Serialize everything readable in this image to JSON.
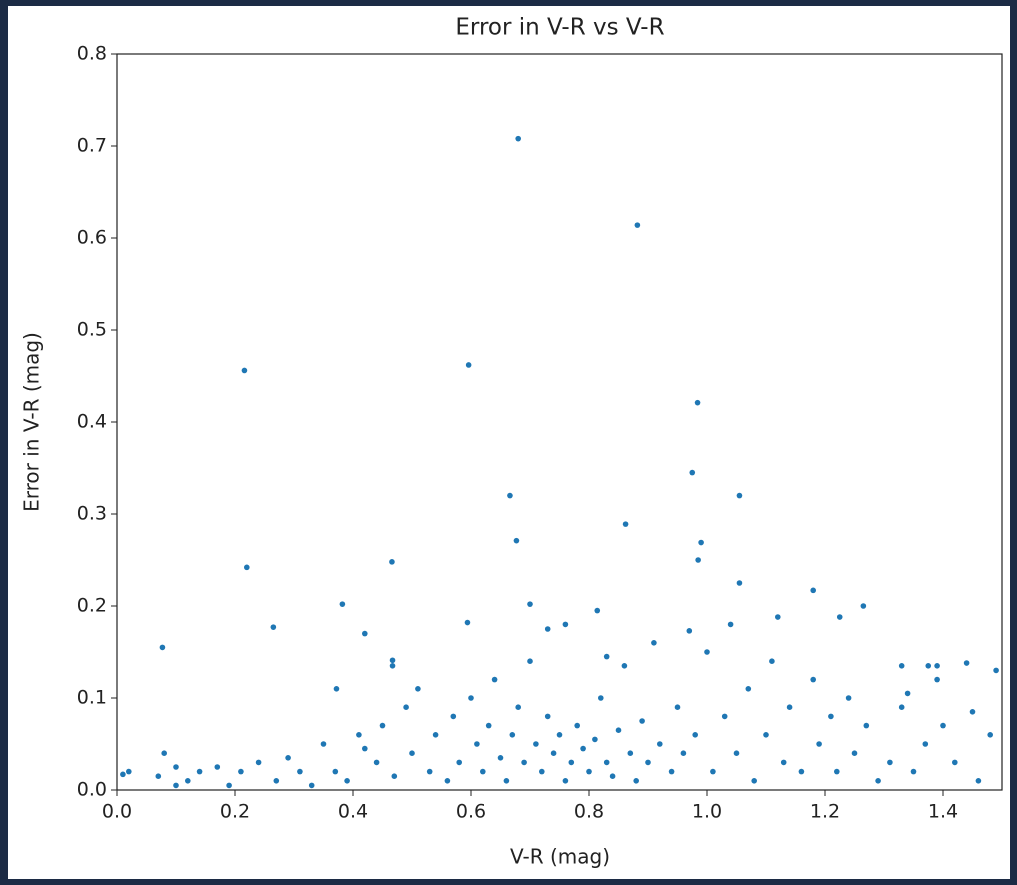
{
  "chart_data": {
    "type": "scatter",
    "title": "Error in V-R vs V-R",
    "x_label": "V-R (mag)",
    "y_label": "Error in V-R (mag)",
    "color": "#1f77b4",
    "xlim": [
      0,
      1.5
    ],
    "ylim": [
      0,
      0.8
    ],
    "xticks": [
      {
        "value": 0,
        "label": "0.0"
      },
      0.2,
      0.4,
      0.6,
      0.8,
      {
        "value": 1,
        "label": "1.0"
      },
      1.2,
      1.4
    ],
    "yticks": [
      {
        "value": 0,
        "label": "0.0"
      },
      0.1,
      0.2,
      0.3,
      0.4,
      0.5,
      0.6,
      0.7,
      0.8
    ],
    "x": [
      0.68,
      0.882,
      0.216,
      0.596,
      0.984,
      0.975,
      0.666,
      1.055,
      0.862,
      0.677,
      0.99,
      0.985,
      0.22,
      0.466,
      0.7,
      0.382,
      1.18,
      1.265,
      0.077,
      0.265,
      0.42,
      0.594,
      0.814,
      1.055,
      1.12,
      1.225,
      0.97,
      1.49,
      1.44,
      1.33,
      0.467,
      0.467,
      0.372,
      1.375,
      1.39,
      0.01,
      0.02,
      0.07,
      0.08,
      0.1,
      0.12,
      0.14,
      0.17,
      0.19,
      0.21,
      0.24,
      0.27,
      0.29,
      0.31,
      0.33,
      0.35,
      0.37,
      0.39,
      0.41,
      0.42,
      0.44,
      0.45,
      0.47,
      0.49,
      0.5,
      0.51,
      0.53,
      0.54,
      0.56,
      0.57,
      0.58,
      0.6,
      0.61,
      0.62,
      0.63,
      0.64,
      0.65,
      0.66,
      0.67,
      0.68,
      0.69,
      0.7,
      0.71,
      0.72,
      0.73,
      0.74,
      0.75,
      0.76,
      0.77,
      0.78,
      0.79,
      0.8,
      0.81,
      0.82,
      0.83,
      0.84,
      0.85,
      0.86,
      0.87,
      0.88,
      0.89,
      0.9,
      0.91,
      0.92,
      0.94,
      0.95,
      0.96,
      0.98,
      1.0,
      1.01,
      1.03,
      1.04,
      1.05,
      1.07,
      1.08,
      1.1,
      1.11,
      1.13,
      1.14,
      1.16,
      1.18,
      1.19,
      1.21,
      1.22,
      1.24,
      1.25,
      1.27,
      1.29,
      1.31,
      1.33,
      1.34,
      1.35,
      1.37,
      1.39,
      1.4,
      1.42,
      1.45,
      1.46,
      1.48,
      0.76,
      0.73,
      0.83,
      0.1
    ],
    "values": [
      0.708,
      0.614,
      0.456,
      0.462,
      0.421,
      0.345,
      0.32,
      0.32,
      0.289,
      0.271,
      0.269,
      0.25,
      0.242,
      0.248,
      0.202,
      0.202,
      0.217,
      0.2,
      0.155,
      0.177,
      0.17,
      0.182,
      0.195,
      0.225,
      0.188,
      0.188,
      0.173,
      0.13,
      0.138,
      0.135,
      0.141,
      0.135,
      0.11,
      0.135,
      0.135,
      0.017,
      0.02,
      0.015,
      0.04,
      0.025,
      0.01,
      0.02,
      0.025,
      0.005,
      0.02,
      0.03,
      0.01,
      0.035,
      0.02,
      0.005,
      0.05,
      0.02,
      0.01,
      0.06,
      0.045,
      0.03,
      0.07,
      0.015,
      0.09,
      0.04,
      0.11,
      0.02,
      0.06,
      0.01,
      0.08,
      0.03,
      0.1,
      0.05,
      0.02,
      0.07,
      0.12,
      0.035,
      0.01,
      0.06,
      0.09,
      0.03,
      0.14,
      0.05,
      0.02,
      0.08,
      0.04,
      0.06,
      0.01,
      0.03,
      0.07,
      0.045,
      0.02,
      0.055,
      0.1,
      0.03,
      0.015,
      0.065,
      0.135,
      0.04,
      0.01,
      0.075,
      0.03,
      0.16,
      0.05,
      0.02,
      0.09,
      0.04,
      0.06,
      0.15,
      0.02,
      0.08,
      0.18,
      0.04,
      0.11,
      0.01,
      0.06,
      0.14,
      0.03,
      0.09,
      0.02,
      0.12,
      0.05,
      0.08,
      0.02,
      0.1,
      0.04,
      0.07,
      0.01,
      0.03,
      0.09,
      0.105,
      0.02,
      0.05,
      0.12,
      0.07,
      0.03,
      0.085,
      0.01,
      0.06,
      0.18,
      0.175,
      0.145,
      0.005
    ]
  }
}
